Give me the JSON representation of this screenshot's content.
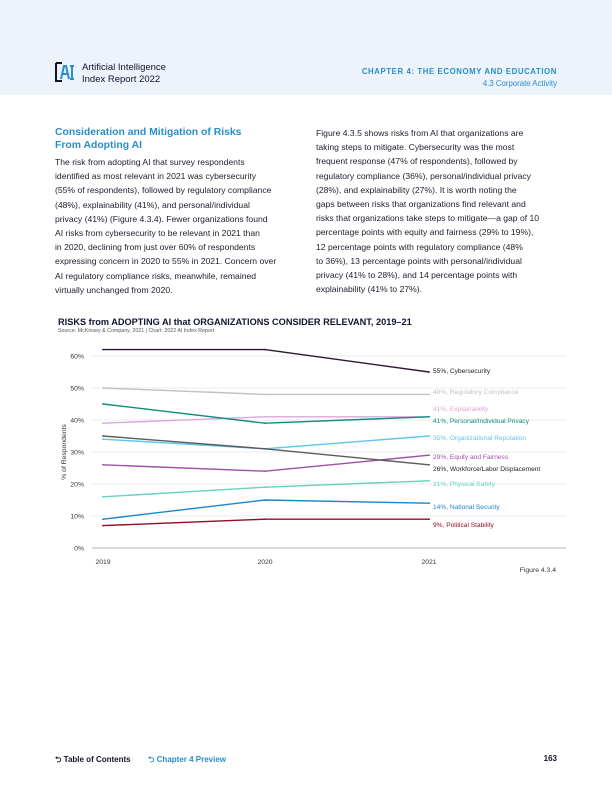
{
  "header": {
    "report_line1": "Artificial Intelligence",
    "report_line2": "Index Report 2022",
    "chapter": "CHAPTER 4: THE ECONOMY AND EDUCATION",
    "section": "4.3 Corporate Activity"
  },
  "left_column": {
    "subhead_line1": "Consideration and Mitigation of Risks",
    "subhead_line2": "From Adopting AI",
    "lines": [
      "The risk from adopting AI that survey respondents",
      "identified as most relevant in 2021 was cybersecurity",
      "(55% of respondents), followed by regulatory compliance",
      "(48%), explainability (41%), and personal/individual",
      "privacy (41%) (Figure 4.3.4). Fewer organizations found",
      "AI risks from cybersecurity to be relevant in 2021 than",
      "in 2020, declining from just over 60% of respondents",
      "expressing concern in 2020 to 55% in 2021. Concern over",
      "AI regulatory compliance risks, meanwhile, remained",
      "virtually unchanged from 2020."
    ]
  },
  "right_column": {
    "lines": [
      "Figure 4.3.5 shows risks from AI that organizations are",
      "taking steps to mitigate. Cybersecurity was the most",
      "frequent response (47% of respondents), followed by",
      "regulatory compliance (36%), personal/individual privacy",
      "(28%), and explainability (27%). It is worth noting the",
      "gaps between risks that organizations find relevant and",
      "risks that organizations take steps to mitigate—a gap of 10",
      "percentage points with equity and fairness (29% to 19%),",
      "12 percentage points with regulatory compliance (48%",
      "to 36%), 13 percentage points with personal/individual",
      "privacy (41% to 28%), and 14 percentage points with",
      "explainability (41% to 27%)."
    ]
  },
  "chart_data": {
    "type": "line",
    "title": "RISKS from ADOPTING AI that ORGANIZATIONS CONSIDER RELEVANT, 2019–21",
    "source": "Source: McKinsey & Company, 2021 | Chart: 2022 AI Index Report",
    "ylabel": "% of Respondents",
    "xlabel": "",
    "x": [
      "2019",
      "2020",
      "2021"
    ],
    "ylim": [
      0,
      60
    ],
    "yticks": [
      "0%",
      "10%",
      "20%",
      "30%",
      "40%",
      "50%",
      "60%"
    ],
    "grid": true,
    "series": [
      {
        "name": "Cybersecurity",
        "values": [
          62,
          62,
          55
        ],
        "color": "#2b1836",
        "label": "55%, Cybersecurity"
      },
      {
        "name": "Regulatory Compliance",
        "values": [
          50,
          48,
          48
        ],
        "color": "#c2c2c2",
        "label": "48%, Regulatory Compliance"
      },
      {
        "name": "Explainability",
        "values": [
          39,
          41,
          41
        ],
        "color": "#dda7d9",
        "label": "41%, Explainability"
      },
      {
        "name": "Personal/Individual Privacy",
        "values": [
          45,
          39,
          41
        ],
        "color": "#108c80",
        "label": "41%, Personal/Individual Privacy"
      },
      {
        "name": "Organizational Reputation",
        "values": [
          34,
          31,
          35
        ],
        "color": "#5cc6ee",
        "label": "35%, Organizational Reputation"
      },
      {
        "name": "Equity and Fairness",
        "values": [
          26,
          24,
          29
        ],
        "color": "#9f4fa5",
        "label": "29%, Equity and Fairness"
      },
      {
        "name": "Workforce/Labor Displacement",
        "values": [
          35,
          31,
          26
        ],
        "color": "#5b5b5b",
        "label": "26%, Workforce/Labor Displacement"
      },
      {
        "name": "Physical Safety",
        "values": [
          16,
          19,
          21
        ],
        "color": "#64d3c0",
        "label": "21%, Physical Safety"
      },
      {
        "name": "National Security",
        "values": [
          9,
          15,
          14
        ],
        "color": "#1c86c9",
        "label": "14%, National Security"
      },
      {
        "name": "Political Stability",
        "values": [
          7,
          9,
          9
        ],
        "color": "#8e0f22",
        "label": "9%, Political Stability"
      }
    ]
  },
  "figure_label": "Figure 4.3.4",
  "footer": {
    "toc": "Table of Contents",
    "chapter_preview": "Chapter 4 Preview",
    "page_number": "163"
  }
}
